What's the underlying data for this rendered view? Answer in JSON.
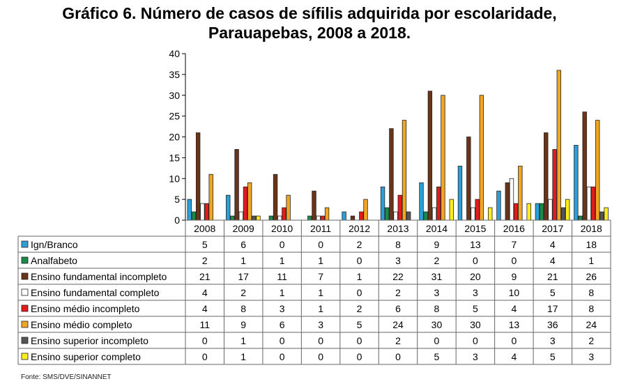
{
  "title_line1": "Gráfico 6. Número de casos de sífilis adquirida por escolaridade,",
  "title_line2": "Parauapebas, 2008 a 2018.",
  "source": "Fonte: SMS/DVE/SINANNET",
  "chart_data": {
    "type": "bar",
    "title": "Gráfico 6. Número de casos de sífilis adquirida por escolaridade, Parauapebas, 2008 a 2018.",
    "xlabel": "",
    "ylabel": "",
    "ylim": [
      0,
      40
    ],
    "yticks": [
      "0",
      "5",
      "10",
      "15",
      "20",
      "25",
      "30",
      "35",
      "40"
    ],
    "legend_position": "table-left",
    "grid": false,
    "categories": [
      "2008",
      "2009",
      "2010",
      "2011",
      "2012",
      "2013",
      "2014",
      "2015",
      "2016",
      "2017",
      "2018"
    ],
    "series": [
      {
        "name": "Ign/Branco",
        "color": "#2a9fd8",
        "values": [
          5,
          6,
          0,
          0,
          2,
          8,
          9,
          13,
          7,
          4,
          18
        ]
      },
      {
        "name": "Analfabeto",
        "color": "#1a8a4a",
        "values": [
          2,
          1,
          1,
          1,
          0,
          3,
          2,
          0,
          0,
          4,
          1
        ]
      },
      {
        "name": "Ensino fundamental incompleto",
        "color": "#6b3317",
        "values": [
          21,
          17,
          11,
          7,
          1,
          22,
          31,
          20,
          9,
          21,
          26
        ]
      },
      {
        "name": "Ensino fundamental completo",
        "color": "#ffffff",
        "values": [
          4,
          2,
          1,
          1,
          0,
          2,
          3,
          3,
          10,
          5,
          8
        ]
      },
      {
        "name": "Ensino médio incompleto",
        "color": "#e31b1b",
        "values": [
          4,
          8,
          3,
          1,
          2,
          6,
          8,
          5,
          4,
          17,
          8
        ]
      },
      {
        "name": "Ensino médio completo",
        "color": "#f0a620",
        "values": [
          11,
          9,
          6,
          3,
          5,
          24,
          30,
          30,
          13,
          36,
          24
        ]
      },
      {
        "name": "Ensino superior incompleto",
        "color": "#555555",
        "values": [
          0,
          1,
          0,
          0,
          0,
          2,
          0,
          0,
          0,
          3,
          2
        ]
      },
      {
        "name": "Ensino superior completo",
        "color": "#ffee1a",
        "values": [
          0,
          1,
          0,
          0,
          0,
          0,
          5,
          3,
          4,
          5,
          3
        ]
      }
    ]
  }
}
